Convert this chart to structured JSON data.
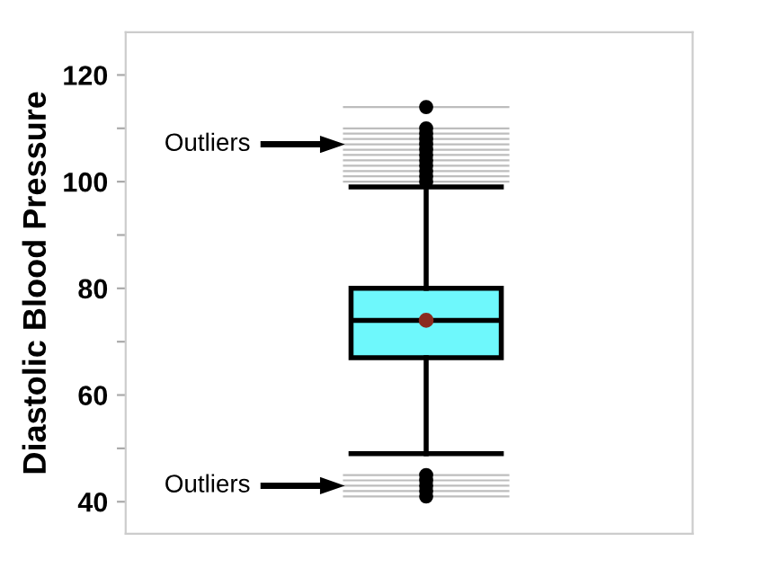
{
  "chart_data": {
    "type": "box",
    "categories": [
      null
    ],
    "ylabel": "Diastolic Blood Pressure",
    "ylim": [
      34,
      128
    ],
    "yticks": [
      40,
      {
        "value": 50,
        "label": null
      },
      60,
      {
        "value": 70,
        "label": null
      },
      80,
      {
        "value": 90,
        "label": null
      },
      100,
      {
        "value": 110,
        "label": null
      },
      120
    ],
    "series": [
      {
        "color": "#6ef8fc",
        "boxes": [
          {
            "low": 49,
            "q1": 67,
            "median": 74,
            "q3": 80,
            "high": 99,
            "mean": 74,
            "outliers": [
              41,
              42,
              43,
              44,
              45,
              100,
              101,
              102,
              103,
              104,
              105,
              106,
              107,
              108,
              109,
              110,
              114
            ]
          }
        ]
      }
    ],
    "annotations": [
      "Outliers",
      "Outliers"
    ],
    "ref_lines": [
      {
        "axis": "y",
        "value": 41,
        "color": "#bdbdbd"
      },
      {
        "axis": "y",
        "value": 42,
        "color": "#bdbdbd"
      },
      {
        "axis": "y",
        "value": 43,
        "color": "#bdbdbd"
      },
      {
        "axis": "y",
        "value": 44,
        "color": "#bdbdbd"
      },
      {
        "axis": "y",
        "value": 45,
        "color": "#bdbdbd"
      },
      {
        "axis": "y",
        "value": 100,
        "color": "#bdbdbd"
      },
      {
        "axis": "y",
        "value": 101,
        "color": "#bdbdbd"
      },
      {
        "axis": "y",
        "value": 102,
        "color": "#bdbdbd"
      },
      {
        "axis": "y",
        "value": 103,
        "color": "#bdbdbd"
      },
      {
        "axis": "y",
        "value": 104,
        "color": "#bdbdbd"
      },
      {
        "axis": "y",
        "value": 105,
        "color": "#bdbdbd"
      },
      {
        "axis": "y",
        "value": 106,
        "color": "#bdbdbd"
      },
      {
        "axis": "y",
        "value": 107,
        "color": "#bdbdbd"
      },
      {
        "axis": "y",
        "value": 108,
        "color": "#bdbdbd"
      },
      {
        "axis": "y",
        "value": 109,
        "color": "#bdbdbd"
      },
      {
        "axis": "y",
        "value": 110,
        "color": "#bdbdbd"
      },
      {
        "axis": "y",
        "value": 114,
        "color": "#bdbdbd"
      }
    ],
    "grid": false,
    "legend": false
  }
}
